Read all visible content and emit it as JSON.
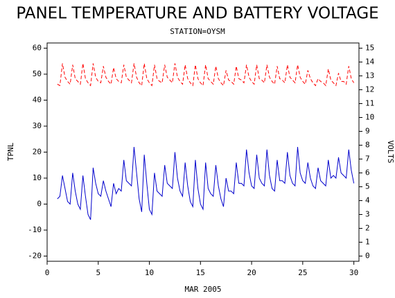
{
  "chart_data": {
    "type": "line",
    "title": "PANEL TEMPERATURE AND BATTERY VOLTAGE",
    "subtitle": "STATION=OYSM",
    "x_label": "MAR 2005",
    "y_label": "TPNL",
    "y2_label": "VOLTS",
    "xlim": [
      0,
      30.5
    ],
    "xticks": [
      0,
      5,
      10,
      15,
      20,
      25,
      30
    ],
    "ylim": [
      -22,
      62
    ],
    "yticks": [
      -20,
      -10,
      0,
      10,
      20,
      30,
      40,
      50,
      60
    ],
    "y2lim": [
      -0.375,
      15.375
    ],
    "y2ticks": [
      0,
      1,
      2,
      3,
      4,
      5,
      6,
      7,
      8,
      9,
      10,
      11,
      12,
      13,
      14,
      15
    ],
    "x": [
      1,
      1.25,
      1.5,
      1.75,
      2,
      2.25,
      2.5,
      2.75,
      3,
      3.25,
      3.5,
      3.75,
      4,
      4.25,
      4.5,
      4.75,
      5,
      5.25,
      5.5,
      5.75,
      6,
      6.25,
      6.5,
      6.75,
      7,
      7.25,
      7.5,
      7.75,
      8,
      8.25,
      8.5,
      8.75,
      9,
      9.25,
      9.5,
      9.75,
      10,
      10.25,
      10.5,
      10.75,
      11,
      11.25,
      11.5,
      11.75,
      12,
      12.25,
      12.5,
      12.75,
      13,
      13.25,
      13.5,
      13.75,
      14,
      14.25,
      14.5,
      14.75,
      15,
      15.25,
      15.5,
      15.75,
      16,
      16.25,
      16.5,
      16.75,
      17,
      17.25,
      17.5,
      17.75,
      18,
      18.25,
      18.5,
      18.75,
      19,
      19.25,
      19.5,
      19.75,
      20,
      20.25,
      20.5,
      20.75,
      21,
      21.25,
      21.5,
      21.75,
      22,
      22.25,
      22.5,
      22.75,
      23,
      23.25,
      23.5,
      23.75,
      24,
      24.25,
      24.5,
      24.75,
      25,
      25.25,
      25.5,
      25.75,
      26,
      26.25,
      26.5,
      26.75,
      27,
      27.25,
      27.5,
      27.75,
      28,
      28.25,
      28.5,
      28.75,
      29,
      29.25,
      29.5,
      29.75,
      30
    ],
    "series": [
      {
        "name": "TPNL",
        "color": "#0000cc",
        "dashed": false,
        "values": [
          2,
          3,
          11,
          6,
          1,
          0,
          12,
          5,
          0,
          -2,
          11,
          3,
          -4,
          -6,
          14,
          8,
          4,
          3,
          9,
          5,
          2,
          -1,
          8,
          4,
          6,
          5,
          17,
          9,
          8,
          7,
          22,
          12,
          2,
          -3,
          19,
          8,
          -2,
          -4,
          12,
          5,
          4,
          3,
          15,
          8,
          7,
          6,
          20,
          10,
          5,
          3,
          16,
          7,
          1,
          -1,
          17,
          6,
          0,
          -2,
          16,
          6,
          4,
          3,
          15,
          7,
          2,
          -1,
          10,
          5,
          5,
          4,
          16,
          8,
          8,
          7,
          21,
          12,
          7,
          6,
          19,
          10,
          8,
          7,
          21,
          11,
          6,
          5,
          17,
          9,
          9,
          8,
          20,
          11,
          8,
          7,
          22,
          12,
          9,
          8,
          16,
          10,
          7,
          6,
          14,
          9,
          8,
          7,
          17,
          10,
          11,
          10,
          18,
          12,
          11,
          10,
          21,
          13,
          8
        ]
      },
      {
        "name": "VOLTS",
        "color": "#ff0000",
        "dashed": true,
        "axis": "y2",
        "values": [
          12.4,
          12.3,
          13.9,
          12.9,
          12.6,
          12.4,
          13.8,
          12.8,
          12.6,
          12.4,
          13.9,
          12.8,
          12.5,
          12.3,
          13.9,
          12.9,
          12.6,
          12.5,
          13.7,
          12.9,
          12.6,
          12.4,
          13.6,
          12.8,
          12.6,
          12.5,
          13.8,
          12.9,
          12.7,
          12.5,
          13.9,
          12.9,
          12.5,
          12.3,
          13.9,
          12.8,
          12.5,
          12.3,
          13.8,
          12.8,
          12.6,
          12.5,
          13.8,
          12.9,
          12.7,
          12.5,
          13.9,
          12.9,
          12.6,
          12.4,
          13.8,
          12.8,
          12.5,
          12.3,
          13.8,
          12.8,
          12.5,
          12.3,
          13.8,
          12.8,
          12.6,
          12.4,
          13.7,
          12.8,
          12.5,
          12.3,
          13.4,
          12.7,
          12.6,
          12.4,
          13.7,
          12.8,
          12.7,
          12.5,
          13.8,
          12.9,
          12.6,
          12.4,
          13.8,
          12.8,
          12.7,
          12.5,
          13.8,
          12.9,
          12.6,
          12.4,
          13.7,
          12.8,
          12.7,
          12.5,
          13.8,
          12.9,
          12.7,
          12.5,
          13.8,
          12.9,
          12.6,
          12.4,
          13.4,
          12.8,
          12.5,
          12.3,
          12.8,
          12.6,
          12.5,
          12.3,
          13.5,
          12.7,
          12.5,
          12.3,
          13.2,
          12.6,
          12.6,
          12.4,
          13.7,
          12.8,
          12.5
        ]
      }
    ]
  }
}
